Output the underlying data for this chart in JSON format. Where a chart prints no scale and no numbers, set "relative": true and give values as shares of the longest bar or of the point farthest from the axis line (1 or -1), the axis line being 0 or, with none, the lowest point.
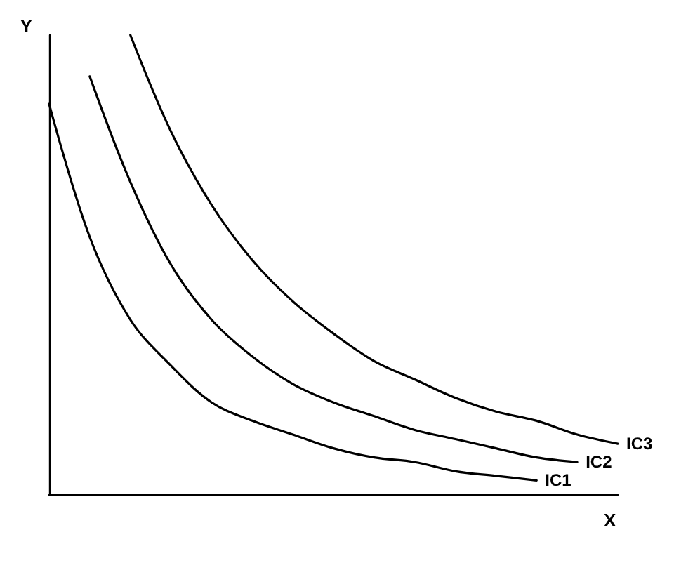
{
  "chart_data": {
    "type": "line",
    "xlabel": "X",
    "ylabel": "Y",
    "relative": true,
    "grid": false,
    "marker": "none",
    "line_style": "solid",
    "categories": [
      null,
      null,
      null,
      null,
      null,
      null,
      null,
      null,
      null,
      null,
      null,
      null,
      null,
      null,
      null
    ],
    "series": [
      {
        "name": "IC1",
        "color": "#000000",
        "values": [
          0.85,
          0.56,
          0.38,
          0.28,
          0.2,
          0.16,
          0.13,
          0.1,
          0.08,
          0.07,
          0.05,
          0.04,
          0.03,
          null,
          null
        ]
      },
      {
        "name": "IC2",
        "color": "#000000",
        "values": [
          null,
          0.91,
          0.68,
          0.5,
          0.38,
          0.3,
          0.24,
          0.2,
          0.17,
          0.14,
          0.12,
          0.1,
          0.08,
          0.07,
          null
        ]
      },
      {
        "name": "IC3",
        "color": "#000000",
        "values": [
          null,
          null,
          1,
          0.79,
          0.63,
          0.51,
          0.42,
          0.35,
          0.29,
          0.25,
          0.21,
          0.18,
          0.16,
          0.13,
          0.11
        ]
      }
    ]
  }
}
